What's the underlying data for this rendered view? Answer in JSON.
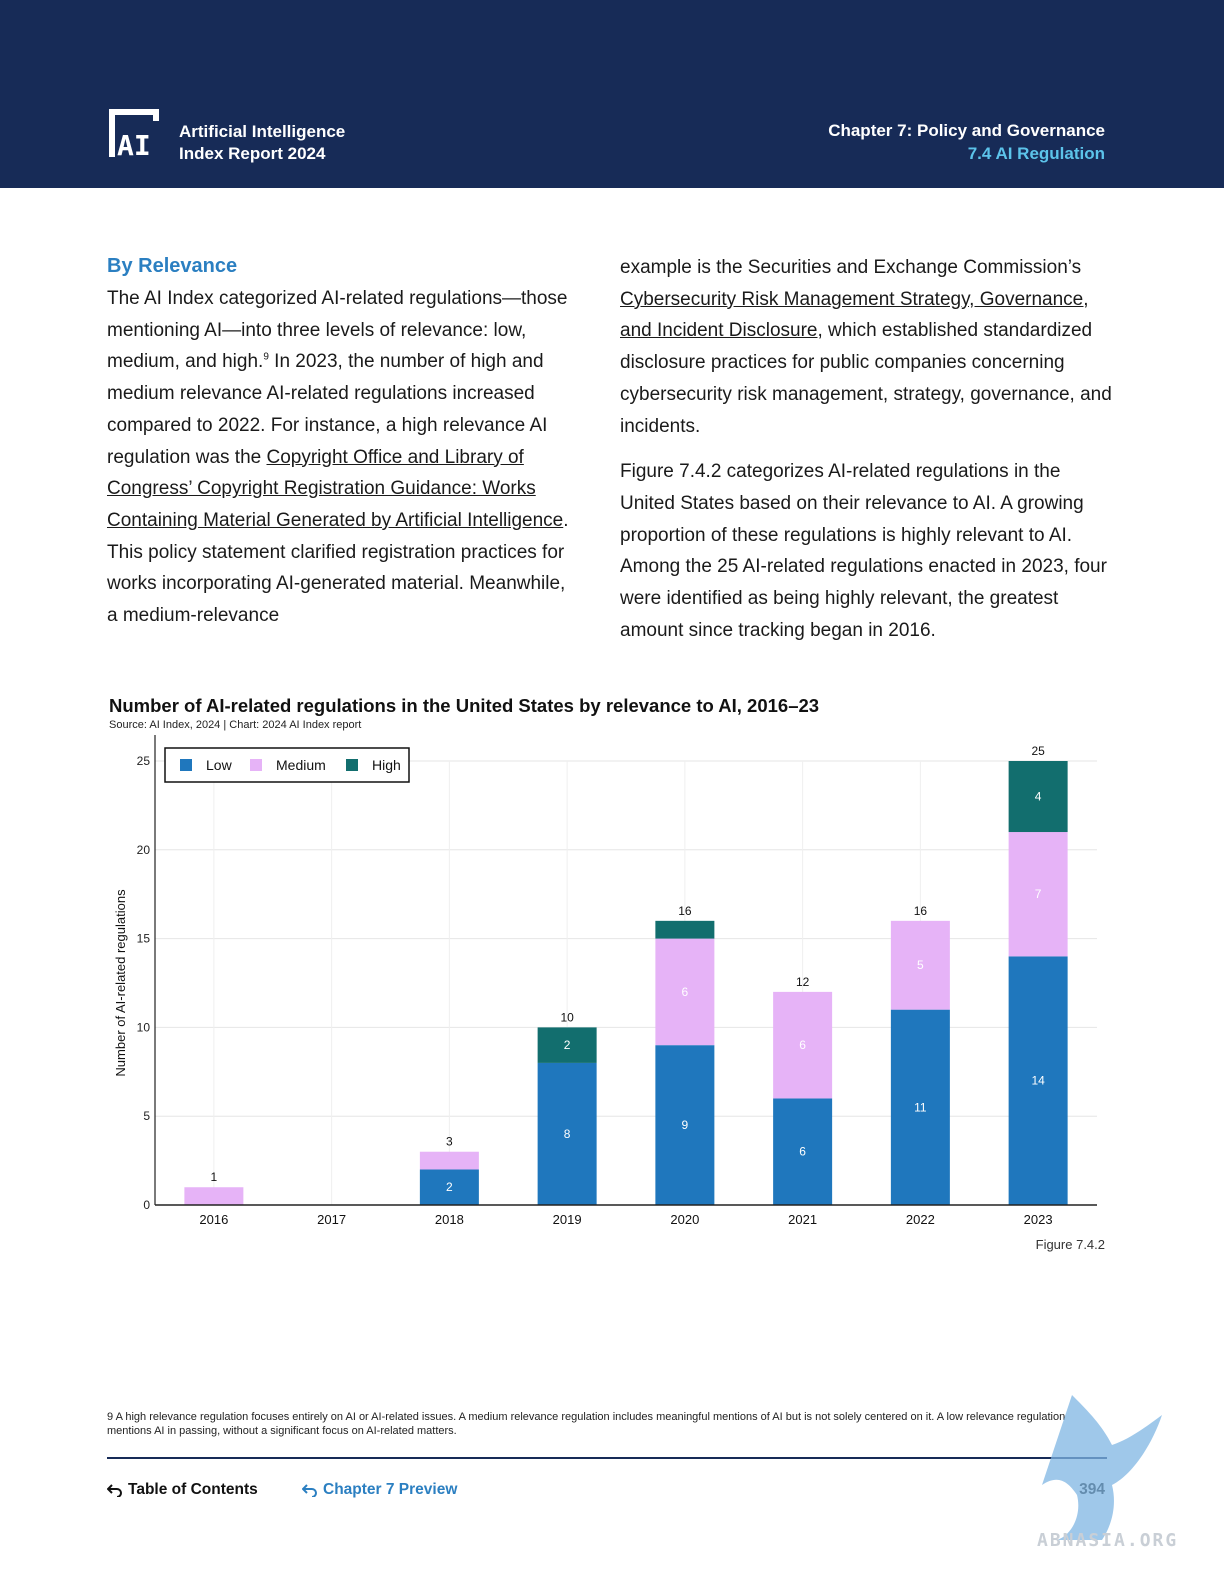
{
  "header": {
    "logo_line1": "Artificial Intelligence",
    "logo_line2": "Index Report 2024",
    "chapter_title": "Chapter 7: Policy and Governance",
    "section_title": "7.4 AI Regulation",
    "bg_color": "#172b57",
    "accent_color": "#5cc3ea"
  },
  "body": {
    "section_heading": "By Relevance",
    "left_p1_a": "The AI Index categorized AI-related regulations—those mentioning AI—into three levels of relevance: low, medium, and high.",
    "left_p1_sup": "9",
    "left_p1_b": " In 2023, the number of high and medium relevance AI-related regulations increased compared to 2022. For instance, a high relevance AI regulation was the ",
    "left_link1": "Copyright Office and Library of Congress’ Copyright Registration Guidance: Works Containing Material Generated by Artificial Intelligence",
    "left_p1_c": ". This policy statement clarified registration practices for works incorporating AI-generated material. Meanwhile, a medium-relevance",
    "right_p1_a": "example is the Securities and Exchange Commission’s ",
    "right_link1": "Cybersecurity Risk Management Strategy, Governance, and Incident Disclosure",
    "right_p1_b": ", which established standardized disclosure practices for public companies concerning cybersecurity risk management, strategy, governance, and incidents.",
    "right_p2": "Figure 7.4.2 categorizes AI-related regulations in the United States based on their relevance to AI. A growing proportion of these regulations is highly relevant to AI. Among the 25 AI-related regulations enacted in 2023, four were identified as being highly relevant, the greatest amount since tracking began in 2016."
  },
  "chart_data": {
    "type": "bar",
    "stacked": true,
    "title": "Number of AI-related regulations in the United States by relevance to AI, 2016–23",
    "source": "Source: AI Index, 2024 | Chart: 2024 AI Index report",
    "xlabel": "",
    "ylabel": "Number of AI-related regulations",
    "ylim": [
      0,
      25
    ],
    "yticks": [
      0,
      5,
      10,
      15,
      20,
      25
    ],
    "grid": true,
    "legend_position": "top-left",
    "categories": [
      "2016",
      "2017",
      "2018",
      "2019",
      "2020",
      "2021",
      "2022",
      "2023"
    ],
    "series": [
      {
        "name": "Low",
        "color": "#1f77bd",
        "values": [
          0,
          0,
          2,
          8,
          9,
          6,
          11,
          14
        ]
      },
      {
        "name": "Medium",
        "color": "#e6b3f7",
        "values": [
          1,
          0,
          1,
          0,
          6,
          6,
          5,
          7
        ]
      },
      {
        "name": "High",
        "color": "#126e6e",
        "values": [
          0,
          0,
          0,
          2,
          1,
          0,
          0,
          4
        ]
      }
    ],
    "segment_labels": [
      {
        "series": "Low",
        "labels": [
          "",
          "",
          "2",
          "8",
          "9",
          "6",
          "11",
          "14"
        ]
      },
      {
        "series": "Medium",
        "labels": [
          "",
          "",
          "",
          "",
          "6",
          "6",
          "5",
          "7"
        ]
      },
      {
        "series": "High",
        "labels": [
          "",
          "",
          "",
          "2",
          "",
          "",
          "",
          "4"
        ]
      }
    ],
    "totals": [
      "1",
      "",
      "3",
      "10",
      "16",
      "12",
      "16",
      "25"
    ]
  },
  "figure_label": "Figure 7.4.2",
  "footnote": "9 A high relevance regulation focuses entirely on AI or AI-related issues. A medium relevance regulation includes meaningful mentions of AI but is not solely centered on it. A low relevance regulation mentions AI in passing, without a significant focus on AI-related matters.",
  "footer": {
    "toc_label": "Table of Contents",
    "chapter_preview_label": "Chapter 7 Preview",
    "page_number": "394",
    "back_icon": "return-arrow-icon"
  },
  "watermark_text": "ABNASIA.ORG"
}
